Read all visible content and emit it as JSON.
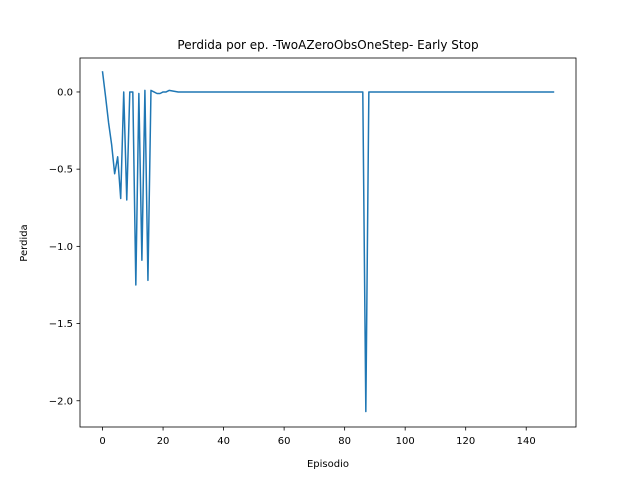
{
  "chart_data": {
    "type": "line",
    "title": "Perdida por ep. -TwoAZeroObsOneStep- Early Stop",
    "xlabel": "Episodio",
    "ylabel": "Perdida",
    "xlim": [
      -7.45,
      156.45
    ],
    "ylim": [
      -2.17,
      0.22
    ],
    "grid": false,
    "legend": "none",
    "x_ticks": [
      0,
      20,
      40,
      60,
      80,
      100,
      120,
      140
    ],
    "x_tick_labels": [
      "0",
      "20",
      "40",
      "60",
      "80",
      "100",
      "120",
      "140"
    ],
    "y_ticks": [
      0.0,
      -0.5,
      -1.0,
      -1.5,
      -2.0
    ],
    "y_tick_labels": [
      "0.0",
      "−0.5",
      "−1.0",
      "−1.5",
      "−2.0"
    ],
    "series": [
      {
        "color": "#1f77b4",
        "x": [
          0,
          1,
          2,
          3,
          4,
          5,
          6,
          7,
          8,
          9,
          10,
          11,
          12,
          13,
          14,
          15,
          16,
          17,
          18,
          19,
          20,
          21,
          22,
          25,
          27,
          30,
          35,
          40,
          45,
          50,
          60,
          70,
          80,
          86,
          87,
          88,
          90,
          100,
          110,
          120,
          130,
          140,
          149
        ],
        "y": [
          0.13,
          -0.03,
          -0.2,
          -0.34,
          -0.53,
          -0.42,
          -0.69,
          0.0,
          -0.7,
          0.0,
          0.0,
          -1.25,
          -0.01,
          -1.09,
          0.01,
          -1.22,
          0.01,
          0.0,
          -0.01,
          -0.01,
          0.0,
          0.0,
          0.01,
          0.0,
          0.0,
          0.0,
          0.0,
          0.0,
          0.0,
          0.0,
          0.0,
          0.0,
          0.0,
          0.0,
          -2.07,
          0.0,
          0.0,
          0.0,
          0.0,
          0.0,
          0.0,
          0.0,
          0.0
        ]
      }
    ]
  }
}
